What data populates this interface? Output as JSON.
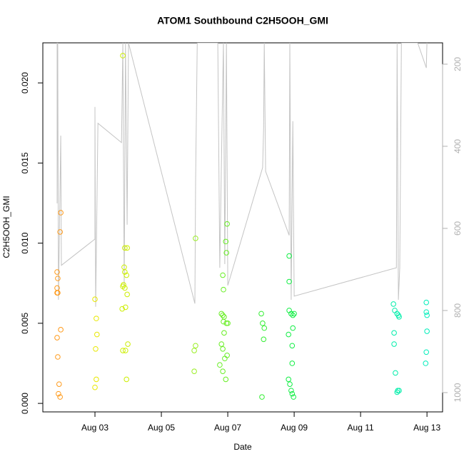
{
  "chart_data": {
    "type": "scatter",
    "title": "ATOM1 Southbound C2H5OOH_GMI",
    "x_label": "Date",
    "y_label": "C2H5OOH_GMI",
    "xlim": [
      1.43,
      13.47
    ],
    "xticks": [
      {
        "value": 3,
        "label": "Aug 03"
      },
      {
        "value": 5,
        "label": "Aug 05"
      },
      {
        "value": 7,
        "label": "Aug 07"
      },
      {
        "value": 9,
        "label": "Aug 09"
      },
      {
        "value": 11,
        "label": "Aug 11"
      },
      {
        "value": 13,
        "label": "Aug 13"
      }
    ],
    "ylim": [
      -0.00053,
      0.0225
    ],
    "yticks": [
      {
        "value": 0,
        "label": "0.000"
      },
      {
        "value": 0.005,
        "label": "0.005"
      },
      {
        "value": 0.01,
        "label": "0.010"
      },
      {
        "value": 0.015,
        "label": "0.015"
      },
      {
        "value": 0.02,
        "label": "0.020"
      }
    ],
    "y2lim": [
      1047,
      148
    ],
    "y2ticks": [
      200,
      400,
      600,
      800,
      1000
    ],
    "series": [
      {
        "type": "line",
        "axis": "y2",
        "color": "#c4c4c4",
        "x": [
          1.86,
          1.86,
          1.88,
          1.9,
          1.97,
          1.99,
          3.0,
          3.0,
          3.02,
          3.09,
          3.8,
          3.84,
          3.88,
          3.92,
          3.97,
          4.01,
          6.01,
          6.03,
          6.08,
          6.7,
          6.76,
          6.83,
          6.87,
          6.91,
          6.96,
          7.0,
          8.05,
          8.08,
          8.1,
          8.14,
          8.85,
          8.87,
          8.91,
          8.96,
          9.0,
          12.08,
          12.1,
          12.14,
          12.18,
          12.23,
          12.72,
          12.98,
          13.0
        ],
        "values": [
          148,
          539,
          148,
          774,
          374,
          690,
          626,
          304,
          791,
          344,
          391,
          148,
          739,
          148,
          591,
          148,
          783,
          487,
          148,
          148,
          696,
          330,
          148,
          687,
          148,
          739,
          452,
          357,
          148,
          461,
          617,
          148,
          774,
          339,
          765,
          696,
          148,
          774,
          696,
          148,
          148,
          209,
          148
        ]
      },
      {
        "color": "#ff9a1a",
        "x": [
          1.86,
          1.88,
          1.86,
          1.88,
          1.86,
          1.97,
          1.95,
          1.97,
          1.86,
          1.88,
          1.92,
          1.9,
          1.95
        ],
        "values": [
          0.0082,
          0.0078,
          0.0072,
          0.0069,
          0.0069,
          0.0119,
          0.0107,
          0.0046,
          0.0041,
          0.0029,
          0.0012,
          0.0006,
          0.0004
        ]
      },
      {
        "color": "#e8e800",
        "x": [
          3.0,
          3.04,
          3.06,
          3.02,
          3.04,
          3.0
        ],
        "values": [
          0.0065,
          0.0053,
          0.0043,
          0.0034,
          0.0015,
          0.001
        ]
      },
      {
        "color": "#ccee00",
        "x": [
          3.84,
          3.9,
          3.97,
          3.88,
          3.9,
          3.95,
          3.86,
          3.84,
          3.9,
          3.97,
          3.92,
          3.82,
          3.92,
          3.84,
          3.99,
          3.95
        ],
        "values": [
          0.0217,
          0.0097,
          0.0097,
          0.0085,
          0.0082,
          0.008,
          0.0074,
          0.0073,
          0.0072,
          0.0068,
          0.006,
          0.0059,
          0.0033,
          0.0033,
          0.0037,
          0.0015
        ]
      },
      {
        "color": "#99ee22",
        "x": [
          6.03,
          6.03,
          5.99,
          5.99
        ],
        "values": [
          0.0103,
          0.0036,
          0.0033,
          0.002
        ]
      },
      {
        "color": "#66ee22",
        "x": [
          6.98,
          6.94,
          6.96,
          6.85,
          6.87,
          6.81,
          6.85,
          6.89,
          6.87,
          6.96,
          7.0,
          6.89,
          6.81,
          6.85,
          6.98,
          6.91,
          6.76,
          6.85,
          6.94
        ],
        "values": [
          0.0112,
          0.0101,
          0.0094,
          0.008,
          0.0071,
          0.0056,
          0.0055,
          0.0054,
          0.0051,
          0.005,
          0.005,
          0.0044,
          0.0037,
          0.0034,
          0.003,
          0.0028,
          0.0024,
          0.002,
          0.0015
        ]
      },
      {
        "color": "#33ee33",
        "x": [
          8.01,
          8.05,
          8.1,
          8.08,
          8.03
        ],
        "values": [
          0.0056,
          0.005,
          0.0047,
          0.004,
          0.0004
        ]
      },
      {
        "color": "#11ee44",
        "x": [
          8.85,
          8.85,
          8.85,
          8.91,
          8.96,
          9.0,
          8.96,
          8.83,
          8.94,
          8.94,
          8.83,
          8.87,
          8.91,
          8.94,
          8.98
        ],
        "values": [
          0.0092,
          0.0076,
          0.0058,
          0.0056,
          0.0055,
          0.0056,
          0.0047,
          0.0043,
          0.0036,
          0.0025,
          0.0015,
          0.0012,
          0.0008,
          0.0006,
          0.0004
        ]
      },
      {
        "color": "#00eeaa",
        "x": [
          11.99,
          12.03,
          12.1,
          12.14,
          12.16,
          12.01,
          12.01,
          12.05,
          12.12,
          12.16,
          12.1
        ],
        "values": [
          0.0062,
          0.0058,
          0.0056,
          0.0055,
          0.0054,
          0.0044,
          0.0037,
          0.0019,
          0.0008,
          0.0008,
          0.0007
        ]
      },
      {
        "color": "#00eebb",
        "x": [
          12.98,
          12.98,
          13.0,
          13.0,
          12.98,
          12.96
        ],
        "values": [
          0.0063,
          0.0057,
          0.0055,
          0.0045,
          0.0032,
          0.0025
        ]
      }
    ]
  }
}
